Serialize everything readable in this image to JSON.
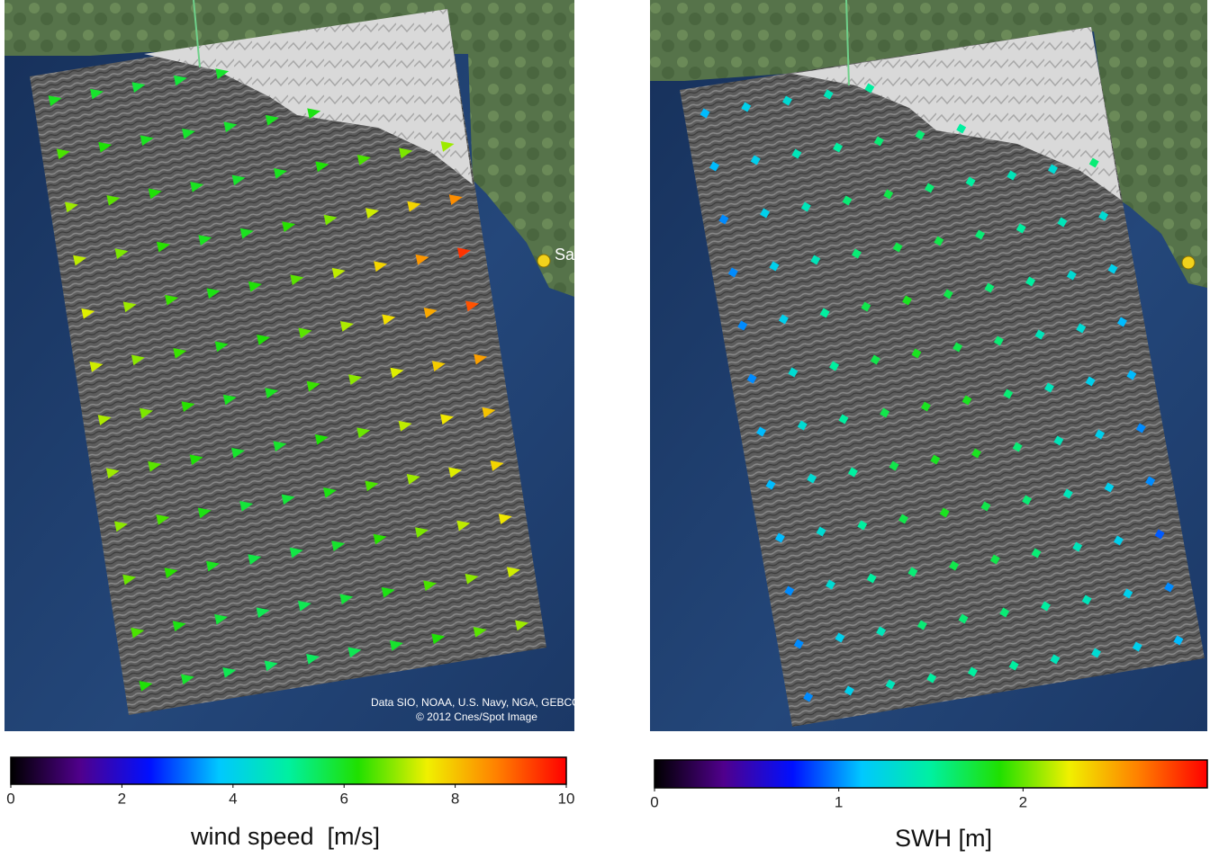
{
  "colormap": [
    "#000000",
    "#50008c",
    "#0010ff",
    "#00c8ff",
    "#00f0a0",
    "#20e000",
    "#f0f000",
    "#ff8000",
    "#ff0000"
  ],
  "place_label": "Sa",
  "panels": [
    {
      "attribution": [
        "Data SIO, NOAA, U.S. Navy, NGA, GEBCO",
        "© 2012 Cnes/Spot Image"
      ],
      "colorbar": {
        "label": "wind speed  [m/s]",
        "lim": [
          0,
          10
        ],
        "ticks": [
          0,
          2,
          4,
          6,
          8,
          10
        ]
      },
      "grid": [
        [
          6.0,
          5.9,
          5.8,
          5.8,
          5.9,
          null,
          null,
          null,
          null,
          null
        ],
        [
          6.5,
          6.2,
          6.0,
          5.9,
          5.9,
          6.0,
          6.1,
          null,
          null,
          null
        ],
        [
          7.0,
          6.6,
          6.2,
          6.0,
          5.9,
          6.0,
          6.2,
          6.5,
          6.8,
          7.0
        ],
        [
          7.2,
          6.8,
          6.3,
          6.0,
          6.0,
          6.3,
          6.8,
          7.3,
          7.8,
          8.6
        ],
        [
          7.4,
          7.0,
          6.4,
          6.1,
          6.2,
          6.6,
          7.2,
          7.8,
          8.5,
          9.5
        ],
        [
          7.3,
          6.9,
          6.4,
          6.1,
          6.2,
          6.6,
          7.1,
          7.7,
          8.3,
          9.2
        ],
        [
          7.1,
          6.8,
          6.3,
          6.0,
          6.0,
          6.4,
          6.9,
          7.4,
          7.9,
          8.4
        ],
        [
          7.0,
          6.6,
          6.2,
          5.9,
          5.9,
          6.2,
          6.7,
          7.2,
          7.6,
          8.0
        ],
        [
          6.9,
          6.5,
          6.1,
          5.8,
          5.8,
          6.1,
          6.5,
          7.0,
          7.4,
          7.8
        ],
        [
          6.7,
          6.3,
          6.0,
          5.7,
          5.7,
          5.9,
          6.3,
          6.8,
          7.2,
          7.6
        ],
        [
          6.5,
          6.1,
          5.8,
          5.6,
          5.6,
          5.8,
          6.1,
          6.5,
          6.9,
          7.3
        ],
        [
          6.2,
          5.9,
          5.6,
          5.5,
          5.5,
          5.6,
          5.9,
          6.2,
          6.6,
          7.0
        ]
      ]
    },
    {
      "colorbar": {
        "label": "SWH [m]",
        "lim": [
          0,
          3
        ],
        "ticks": [
          0,
          1,
          2
        ]
      },
      "grid": [
        [
          1.1,
          1.2,
          1.3,
          1.4,
          1.5,
          null,
          null,
          null,
          null,
          null
        ],
        [
          1.1,
          1.2,
          1.4,
          1.5,
          1.6,
          1.6,
          1.5,
          null,
          null,
          null
        ],
        [
          1.0,
          1.2,
          1.4,
          1.6,
          1.7,
          1.6,
          1.5,
          1.4,
          1.3,
          1.6
        ],
        [
          1.0,
          1.2,
          1.4,
          1.6,
          1.7,
          1.7,
          1.6,
          1.5,
          1.4,
          1.3
        ],
        [
          1.0,
          1.2,
          1.5,
          1.7,
          1.8,
          1.7,
          1.6,
          1.5,
          1.3,
          1.2
        ],
        [
          1.0,
          1.3,
          1.5,
          1.7,
          1.8,
          1.7,
          1.6,
          1.4,
          1.3,
          1.1
        ],
        [
          1.1,
          1.3,
          1.5,
          1.7,
          1.8,
          1.8,
          1.6,
          1.4,
          1.2,
          1.1
        ],
        [
          1.1,
          1.3,
          1.5,
          1.7,
          1.8,
          1.8,
          1.6,
          1.4,
          1.2,
          1.0
        ],
        [
          1.1,
          1.3,
          1.5,
          1.7,
          1.8,
          1.7,
          1.6,
          1.4,
          1.2,
          1.0
        ],
        [
          1.0,
          1.3,
          1.5,
          1.6,
          1.7,
          1.7,
          1.6,
          1.4,
          1.2,
          0.9
        ],
        [
          1.0,
          1.2,
          1.4,
          1.6,
          1.6,
          1.6,
          1.5,
          1.4,
          1.2,
          1.0
        ],
        [
          1.0,
          1.2,
          1.4,
          1.5,
          1.5,
          1.5,
          1.4,
          1.3,
          1.2,
          1.1
        ]
      ]
    }
  ]
}
